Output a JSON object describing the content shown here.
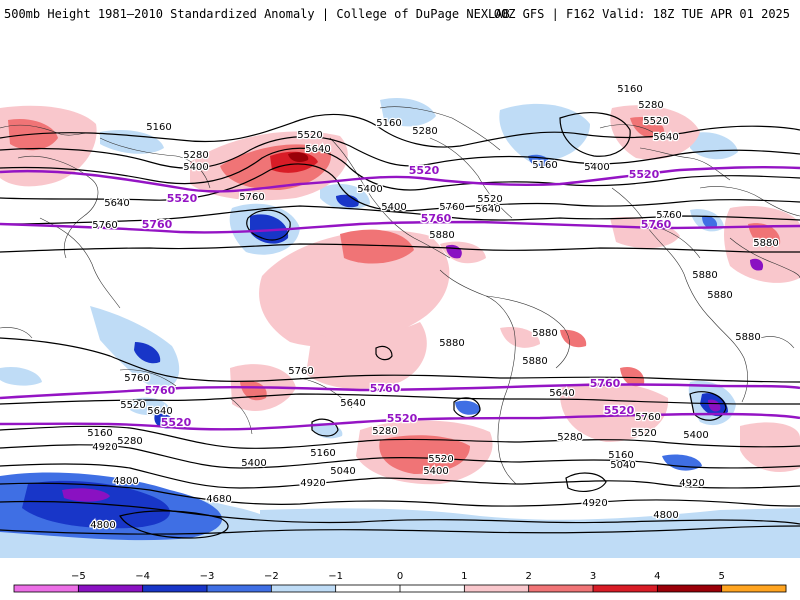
{
  "header": {
    "title": "500mb Height 1981–2010 Standardized Anomaly | College of DuPage NEXLAB",
    "run_info": "00Z GFS | F162 Valid: 18Z TUE APR 01 2025"
  },
  "colors": {
    "neg5": "#ec6fe6",
    "neg4": "#8a11c2",
    "neg3": "#1836c8",
    "neg2": "#3f6fe4",
    "neg1": "#bfdcf6",
    "neutral": "#ffffff",
    "pos1": "#f9c7cc",
    "pos2": "#f07476",
    "pos3": "#d81c26",
    "pos4": "#9a0008",
    "pos5": "#ffa420",
    "contour": "#000000",
    "highlight_contour": "#9414c4",
    "coast": "#333333"
  },
  "colorbar": {
    "ticks": [
      "−5",
      "−4",
      "−3",
      "−2",
      "−1",
      "0",
      "1",
      "2",
      "3",
      "4",
      "5"
    ]
  },
  "contour_labels": [
    {
      "text": "5160",
      "hl": false,
      "a": "p1"
    },
    {
      "text": "5280",
      "hl": false,
      "a": "p2"
    },
    {
      "text": "5400",
      "hl": false,
      "a": "p3"
    },
    {
      "text": "5520",
      "hl": true,
      "a": "p4"
    },
    {
      "text": "5640",
      "hl": false,
      "a": "p5"
    },
    {
      "text": "5760",
      "hl": false,
      "a": "p6"
    },
    {
      "text": "5760",
      "hl": true,
      "a": "p7"
    },
    {
      "text": "5520",
      "hl": false,
      "a": "p8"
    },
    {
      "text": "5640",
      "hl": false,
      "a": "p9"
    },
    {
      "text": "5400",
      "hl": false,
      "a": "p10"
    },
    {
      "text": "5760",
      "hl": false,
      "a": "p11"
    },
    {
      "text": "5160",
      "hl": false,
      "a": "p12"
    },
    {
      "text": "5280",
      "hl": false,
      "a": "p13"
    },
    {
      "text": "5400",
      "hl": false,
      "a": "p14"
    },
    {
      "text": "5520",
      "hl": true,
      "a": "p15"
    },
    {
      "text": "5520",
      "hl": false,
      "a": "p16"
    },
    {
      "text": "5640",
      "hl": false,
      "a": "p17"
    },
    {
      "text": "5760",
      "hl": false,
      "a": "p18"
    },
    {
      "text": "5760",
      "hl": true,
      "a": "p19"
    },
    {
      "text": "5880",
      "hl": false,
      "a": "p20"
    },
    {
      "text": "5160",
      "hl": false,
      "a": "p21"
    },
    {
      "text": "5400",
      "hl": false,
      "a": "p22"
    },
    {
      "text": "5160",
      "hl": false,
      "a": "p23"
    },
    {
      "text": "5280",
      "hl": false,
      "a": "p24"
    },
    {
      "text": "5520",
      "hl": false,
      "a": "p25"
    },
    {
      "text": "5640",
      "hl": false,
      "a": "p26"
    },
    {
      "text": "5520",
      "hl": true,
      "a": "p27"
    },
    {
      "text": "5760",
      "hl": false,
      "a": "p28"
    },
    {
      "text": "5760",
      "hl": true,
      "a": "p29"
    },
    {
      "text": "5880",
      "hl": false,
      "a": "p30"
    },
    {
      "text": "5880",
      "hl": false,
      "a": "p31"
    },
    {
      "text": "5880",
      "hl": false,
      "a": "p32"
    },
    {
      "text": "5880",
      "hl": false,
      "a": "p33"
    },
    {
      "text": "5880",
      "hl": false,
      "a": "p34"
    },
    {
      "text": "5880",
      "hl": false,
      "a": "p35"
    },
    {
      "text": "5880",
      "hl": false,
      "a": "p36"
    },
    {
      "text": "5760",
      "hl": false,
      "a": "p37"
    },
    {
      "text": "5760",
      "hl": true,
      "a": "p38"
    },
    {
      "text": "5520",
      "hl": false,
      "a": "p39"
    },
    {
      "text": "5640",
      "hl": false,
      "a": "p40"
    },
    {
      "text": "5400",
      "hl": false,
      "a": "p41"
    },
    {
      "text": "5520",
      "hl": true,
      "a": "p42"
    },
    {
      "text": "5160",
      "hl": false,
      "a": "p43"
    },
    {
      "text": "5280",
      "hl": false,
      "a": "p44"
    },
    {
      "text": "4920",
      "hl": false,
      "a": "p45"
    },
    {
      "text": "5760",
      "hl": false,
      "a": "p46"
    },
    {
      "text": "5640",
      "hl": false,
      "a": "p47"
    },
    {
      "text": "5760",
      "hl": true,
      "a": "p48"
    },
    {
      "text": "5520",
      "hl": true,
      "a": "p49"
    },
    {
      "text": "5160",
      "hl": false,
      "a": "p50"
    },
    {
      "text": "5280",
      "hl": false,
      "a": "p51"
    },
    {
      "text": "5040",
      "hl": false,
      "a": "p52"
    },
    {
      "text": "5400",
      "hl": false,
      "a": "p53"
    },
    {
      "text": "5520",
      "hl": false,
      "a": "p54"
    },
    {
      "text": "4920",
      "hl": false,
      "a": "p55"
    },
    {
      "text": "5760",
      "hl": true,
      "a": "p56"
    },
    {
      "text": "5520",
      "hl": true,
      "a": "p57"
    },
    {
      "text": "5640",
      "hl": false,
      "a": "p58"
    },
    {
      "text": "5760",
      "hl": false,
      "a": "p59"
    },
    {
      "text": "5520",
      "hl": false,
      "a": "p60"
    },
    {
      "text": "5400",
      "hl": false,
      "a": "p61"
    },
    {
      "text": "5280",
      "hl": false,
      "a": "p62"
    },
    {
      "text": "5160",
      "hl": false,
      "a": "p63"
    },
    {
      "text": "5040",
      "hl": false,
      "a": "p64"
    },
    {
      "text": "4920",
      "hl": false,
      "a": "p65"
    },
    {
      "text": "4920",
      "hl": false,
      "a": "p66"
    },
    {
      "text": "4800",
      "hl": false,
      "a": "p67"
    },
    {
      "text": "4680",
      "hl": false,
      "a": "p68"
    },
    {
      "text": "4800",
      "hl": false,
      "a": "p69"
    },
    {
      "text": "4800",
      "hl": false,
      "a": "p70"
    }
  ]
}
